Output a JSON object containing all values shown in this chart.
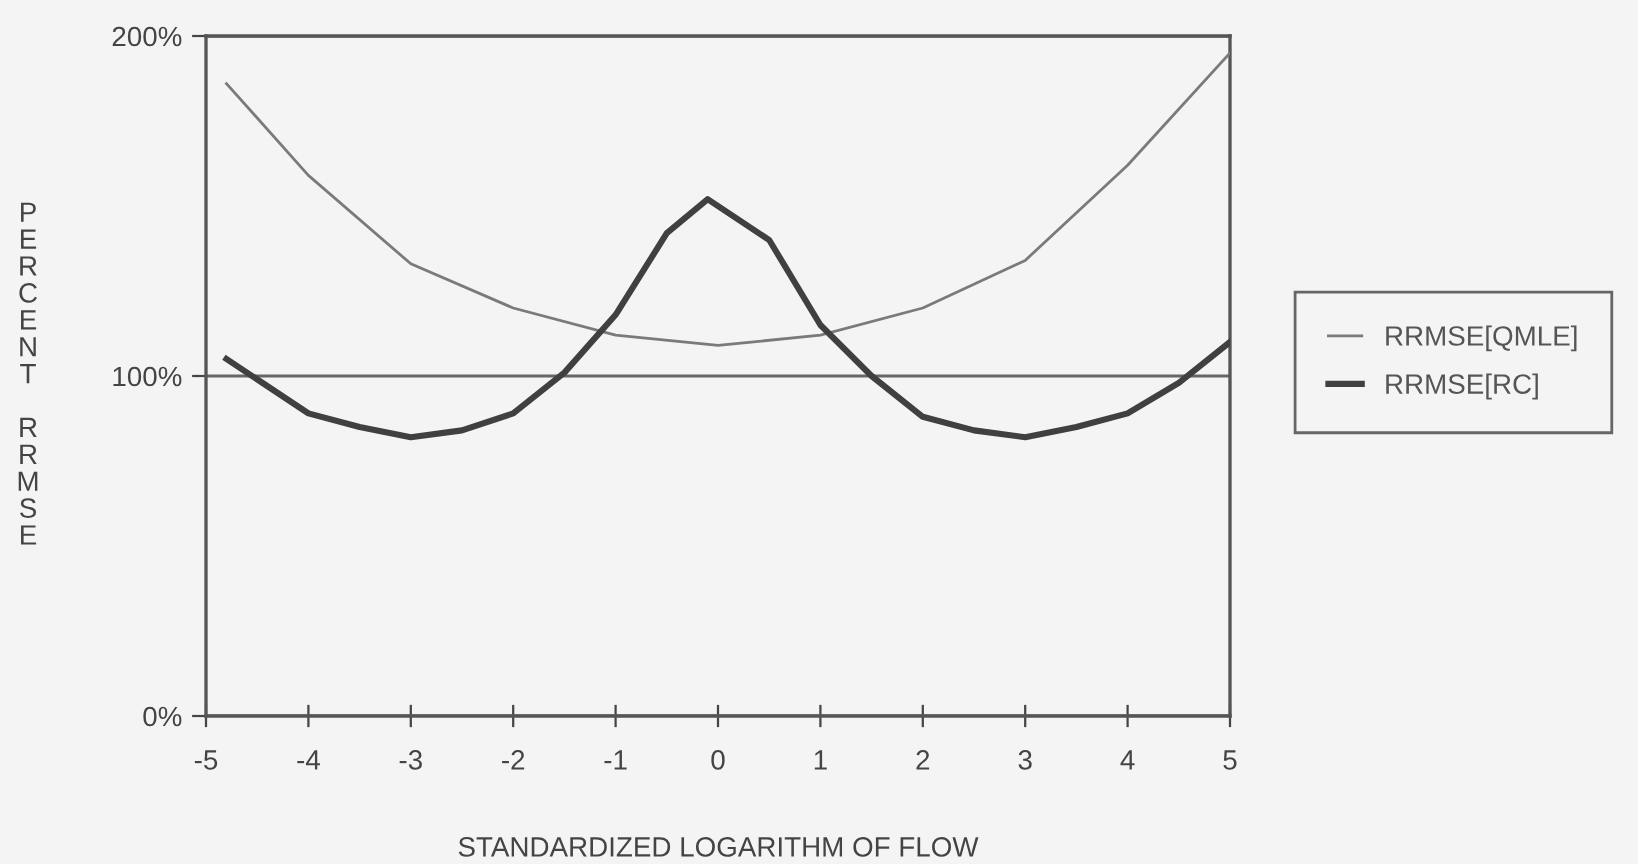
{
  "chart_data": {
    "type": "line",
    "xlabel": "STANDARDIZED LOGARITHM OF FLOW",
    "ylabel": "PERCENT RRMSE",
    "xlim": [
      -5,
      5
    ],
    "xticks": [
      -5,
      -4,
      -3,
      -2,
      -1,
      0,
      1,
      2,
      3,
      4,
      5
    ],
    "ylim": [
      0,
      200
    ],
    "yticks": [
      {
        "value": 0,
        "label": "0%"
      },
      {
        "value": 100,
        "label": "100%"
      },
      {
        "value": 200,
        "label": "200%"
      }
    ],
    "grid": "y",
    "legend": "right",
    "marker": "none",
    "line_style": "solid",
    "series": [
      {
        "name": "RRMSE[QMLE]",
        "color": "#7a7a7a",
        "x": [
          -4.8,
          -4,
          -3,
          -2,
          -1,
          0,
          1,
          2,
          3,
          4,
          5
        ],
        "values": [
          186,
          159,
          133,
          120,
          112,
          109,
          112,
          120,
          134,
          162,
          195
        ]
      },
      {
        "name": "RRMSE[RC]",
        "color": "#404040",
        "x": [
          -4.8,
          -4,
          -3.5,
          -3,
          -2.5,
          -2,
          -1.5,
          -1,
          -0.5,
          -0.1,
          0.5,
          1,
          1.5,
          2,
          2.5,
          3,
          3.5,
          4,
          4.5,
          5
        ],
        "values": [
          105,
          89,
          85,
          82,
          84,
          89,
          101,
          118,
          142,
          152,
          140,
          115,
          100,
          88,
          84,
          82,
          85,
          89,
          98,
          110
        ]
      }
    ]
  }
}
